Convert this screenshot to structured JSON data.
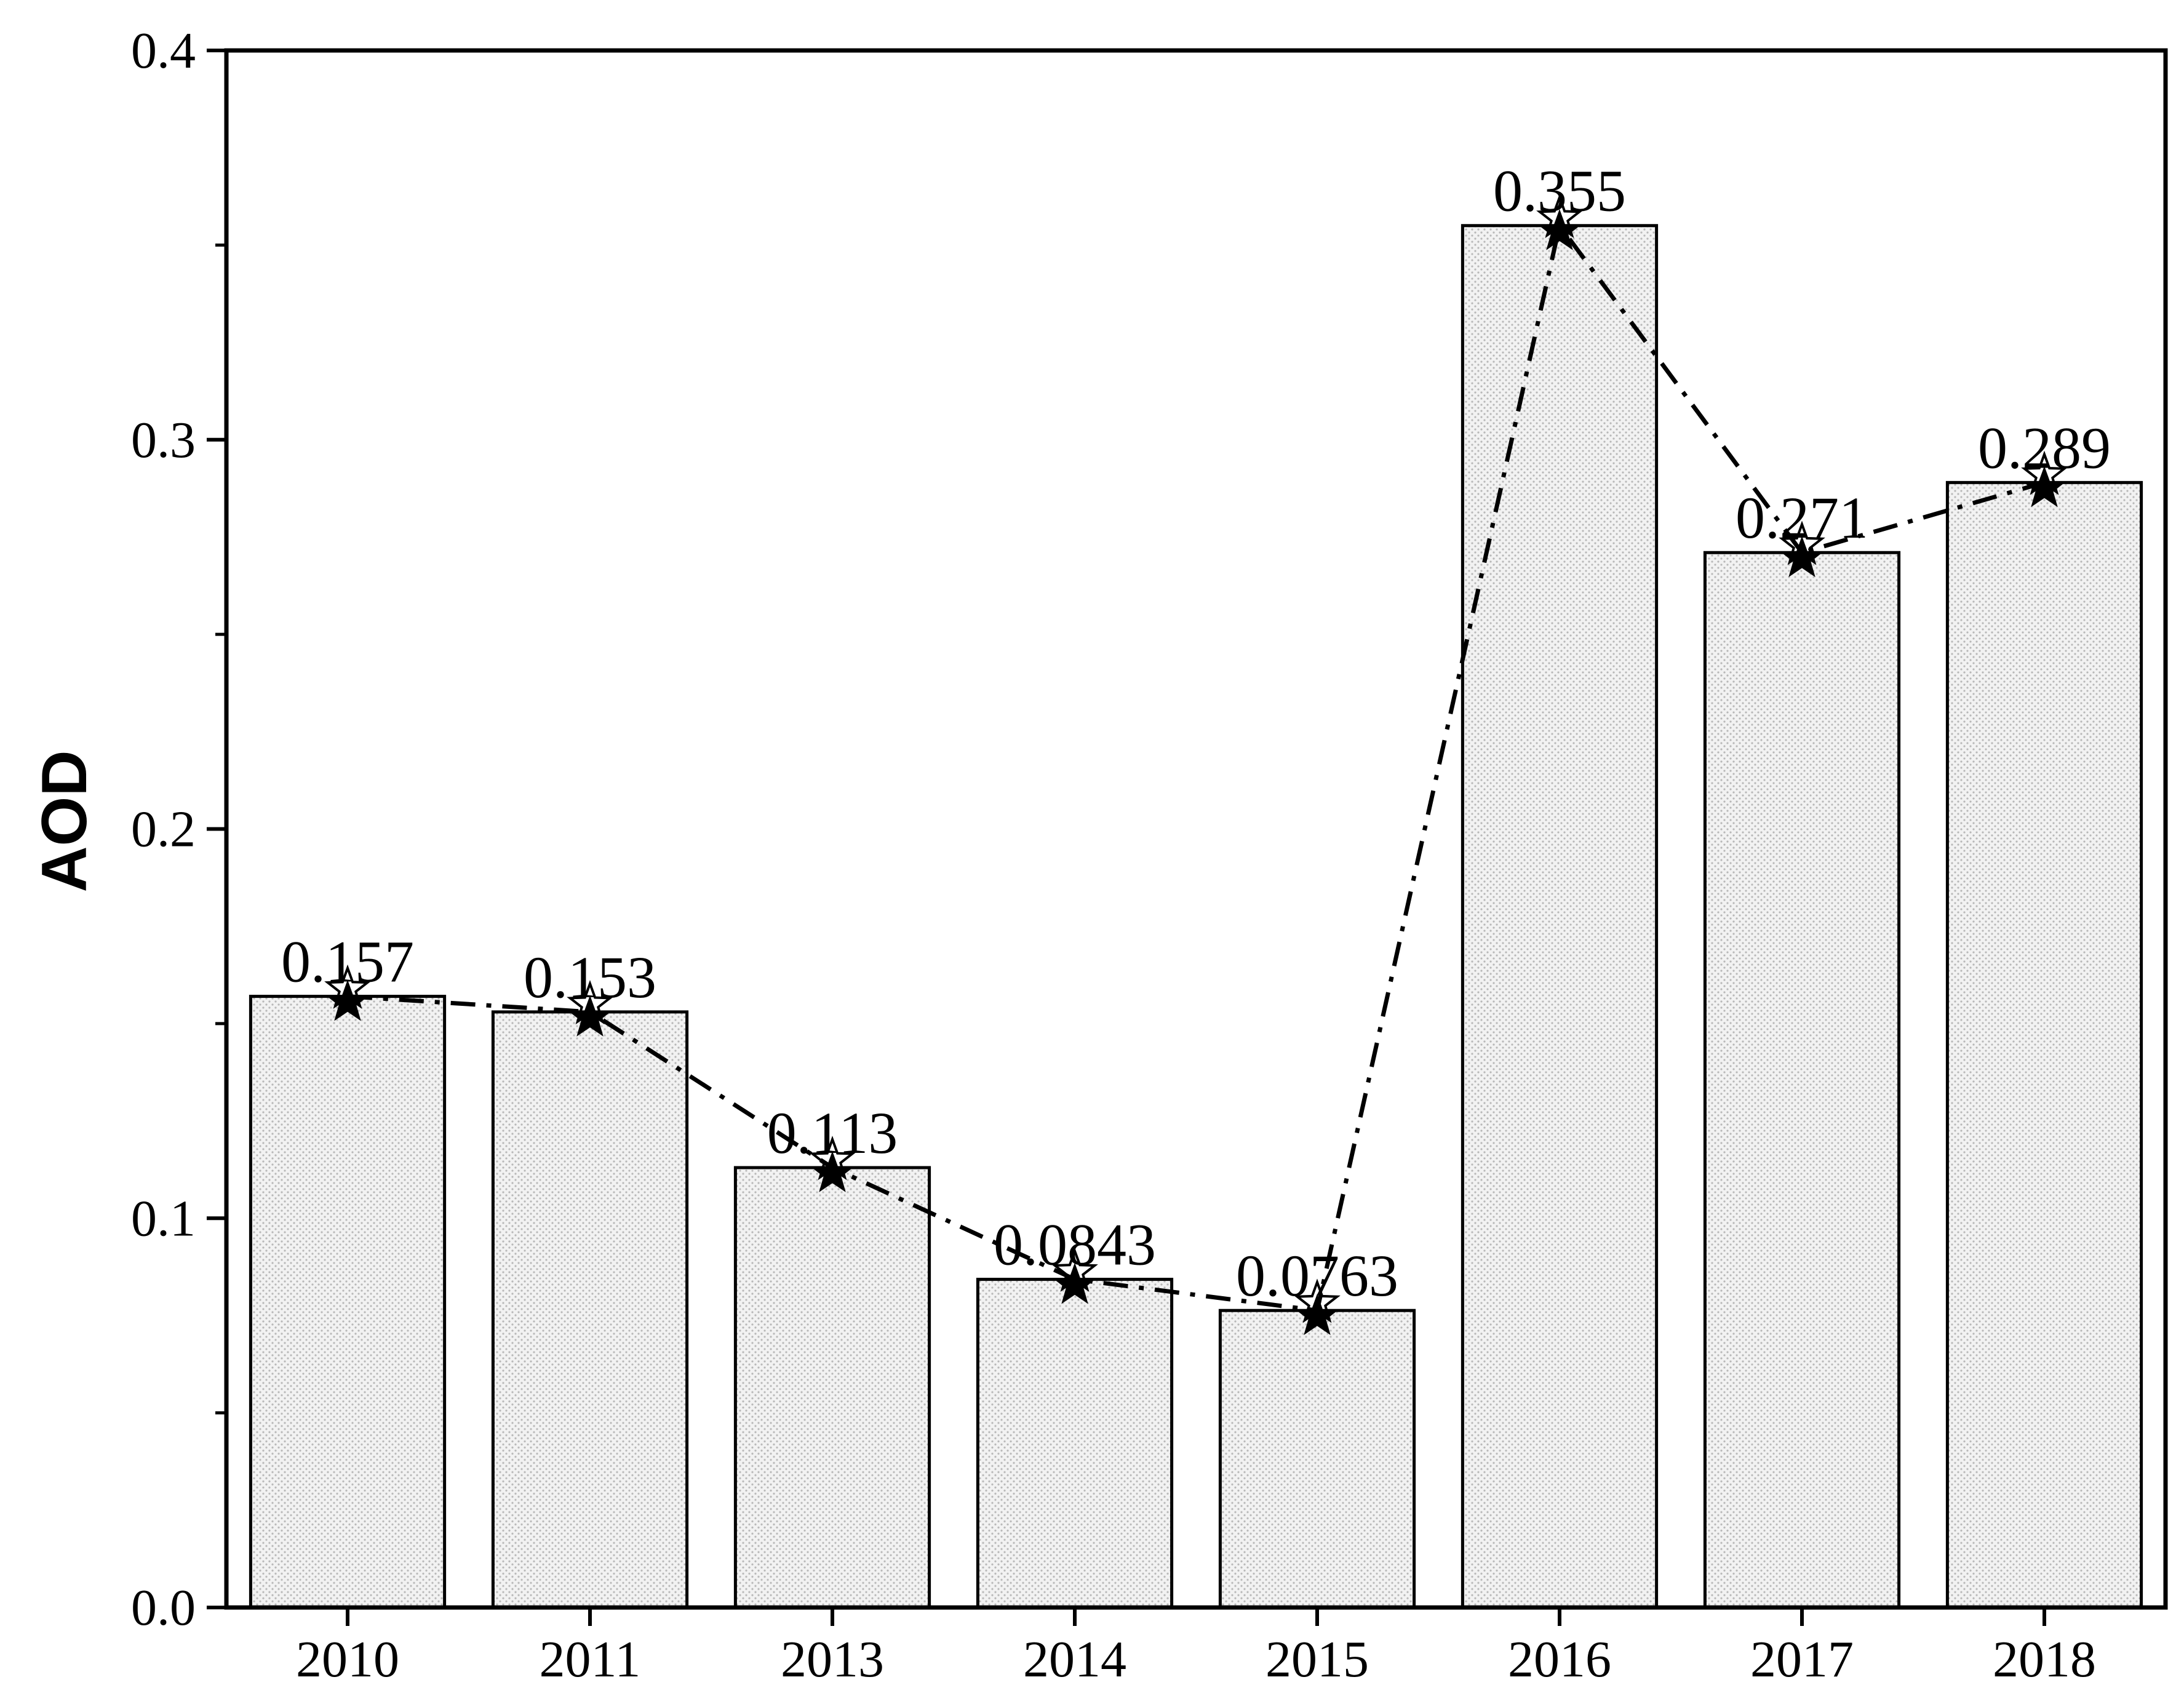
{
  "chart_data": {
    "type": "bar",
    "title": "",
    "xlabel": "",
    "ylabel": "AOD",
    "categories": [
      "2010",
      "2011",
      "2013",
      "2014",
      "2015",
      "2016",
      "2017",
      "2018"
    ],
    "values": [
      0.157,
      0.153,
      0.113,
      0.0843,
      0.0763,
      0.355,
      0.271,
      0.289
    ],
    "value_labels": [
      "0.157",
      "0.153",
      "0.113",
      "0.0843",
      "0.0763",
      "0.355",
      "0.271",
      "0.289"
    ],
    "overlay_line": {
      "type": "line",
      "style": "dash-dot",
      "marker": "star",
      "values": [
        0.157,
        0.153,
        0.113,
        0.0843,
        0.0763,
        0.355,
        0.271,
        0.289
      ]
    },
    "ylim": [
      0,
      0.4
    ],
    "yticks": [
      0.0,
      0.1,
      0.2,
      0.3,
      0.4
    ],
    "ytick_labels": [
      "0.0",
      "0.1",
      "0.2",
      "0.3",
      "0.4"
    ],
    "grid": false,
    "bar_fill": "dotted-light-gray",
    "colors": {
      "bar_fill": "#f2f2f2",
      "bar_dots": "#b8b8b8",
      "stroke": "#000000"
    }
  }
}
